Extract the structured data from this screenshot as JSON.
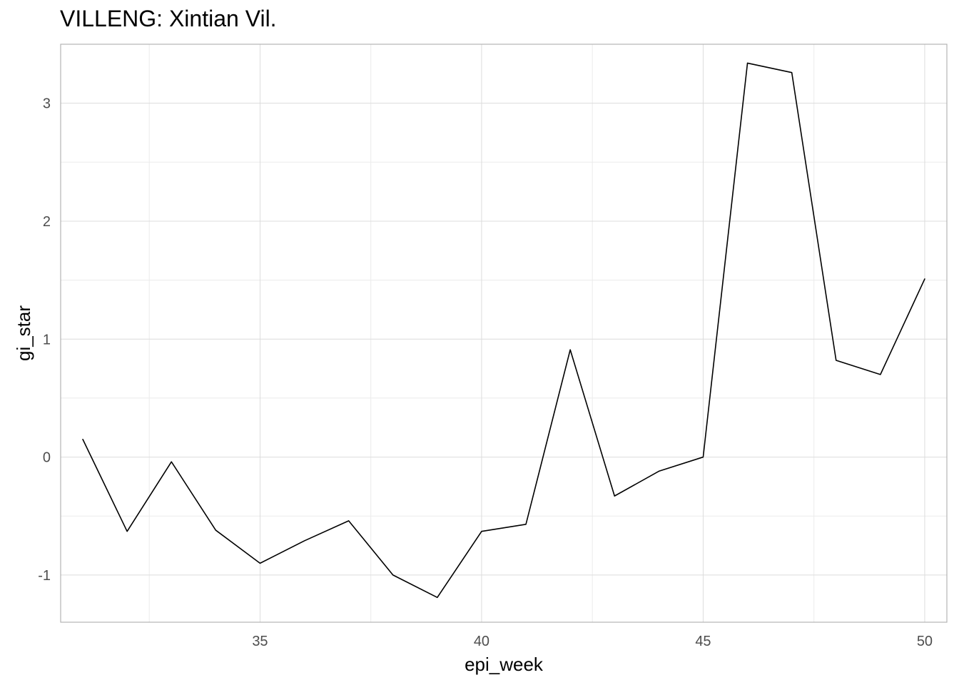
{
  "chart_data": {
    "type": "line",
    "title": "VILLENG: Xintian Vil.",
    "xlabel": "epi_week",
    "ylabel": "gi_star",
    "xlim": [
      30.5,
      50.5
    ],
    "ylim": [
      -1.4,
      3.5
    ],
    "x_ticks": [
      35,
      40,
      45,
      50
    ],
    "x_minor_ticks": [
      32.5,
      37.5,
      42.5,
      47.5
    ],
    "y_ticks": [
      -1,
      0,
      1,
      2,
      3
    ],
    "y_minor_ticks": [
      -0.5,
      0.5,
      1.5,
      2.5
    ],
    "grid": true,
    "series": [
      {
        "color": "#000000",
        "points": [
          {
            "x": 31,
            "y": 0.15
          },
          {
            "x": 32,
            "y": -0.63
          },
          {
            "x": 33,
            "y": -0.04
          },
          {
            "x": 34,
            "y": -0.62
          },
          {
            "x": 35,
            "y": -0.9
          },
          {
            "x": 36,
            "y": -0.71
          },
          {
            "x": 37,
            "y": -0.54
          },
          {
            "x": 38,
            "y": -1.0
          },
          {
            "x": 39,
            "y": -1.19
          },
          {
            "x": 40,
            "y": -0.63
          },
          {
            "x": 41,
            "y": -0.57
          },
          {
            "x": 42,
            "y": 0.91
          },
          {
            "x": 43,
            "y": -0.33
          },
          {
            "x": 44,
            "y": -0.12
          },
          {
            "x": 45,
            "y": 0.0
          },
          {
            "x": 46,
            "y": 3.34
          },
          {
            "x": 47,
            "y": 3.26
          },
          {
            "x": 48,
            "y": 0.82
          },
          {
            "x": 49,
            "y": 0.7
          },
          {
            "x": 50,
            "y": 1.51
          }
        ]
      }
    ]
  },
  "colors": {
    "background": "#ffffff",
    "grid_major": "#dcdcdc",
    "grid_minor": "#ebebeb",
    "panel_border": "#b3b3b3",
    "tick_text": "#4d4d4d"
  }
}
